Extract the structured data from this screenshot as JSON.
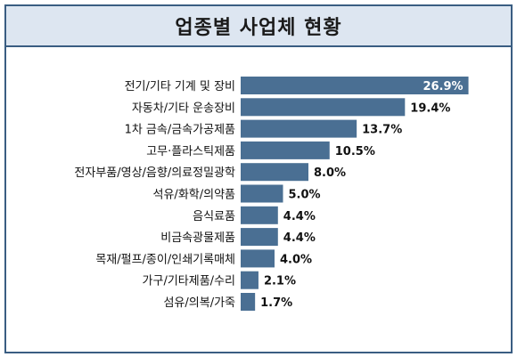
{
  "chart_data": {
    "type": "bar",
    "orientation": "horizontal",
    "title": "업종별 사업체 현황",
    "categories": [
      "전기/기타 기계 및 장비",
      "자동차/기타 운송장비",
      "1차 금속/금속가공제품",
      "고무·플라스틱제품",
      "전자부품/영상/음향/의료정밀광학",
      "석유/화학/의약품",
      "음식료품",
      "비금속광물제품",
      "목재/펄프/종이/인쇄기록매체",
      "가구/기타제품/수리",
      "섬유/의복/가죽"
    ],
    "values": [
      26.9,
      19.4,
      13.7,
      10.5,
      8.0,
      5.0,
      4.4,
      4.4,
      4.0,
      2.1,
      1.7
    ],
    "value_labels": [
      "26.9%",
      "19.4%",
      "13.7%",
      "10.5%",
      "8.0%",
      "5.0%",
      "4.4%",
      "4.4%",
      "4.0%",
      "2.1%",
      "1.7%"
    ],
    "xlim": [
      0,
      30
    ],
    "grid": false,
    "colors": {
      "bar": "#4a6f93",
      "border": "#3a5d82",
      "title_bg": "#dde6f1"
    }
  }
}
